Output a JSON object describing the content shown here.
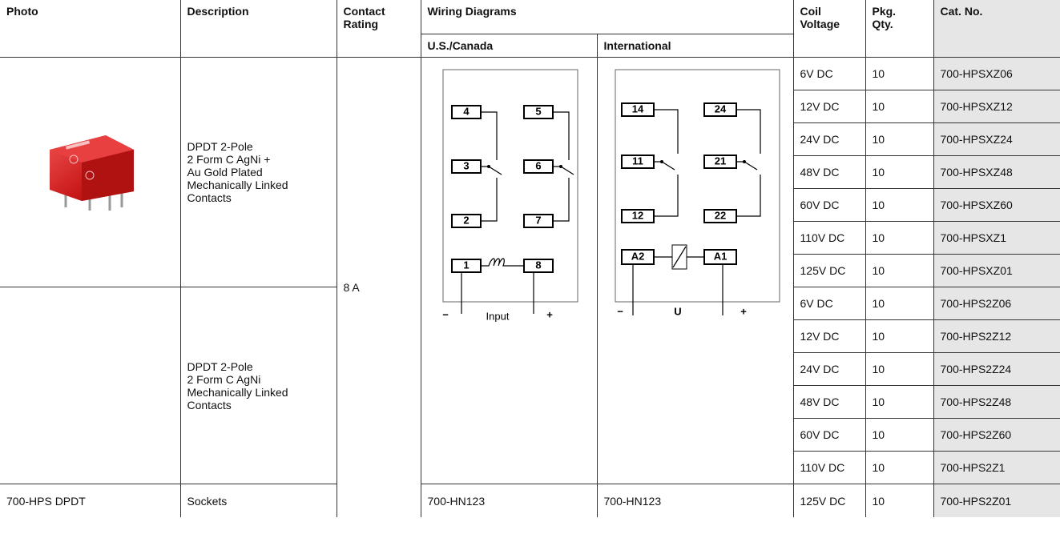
{
  "header": {
    "photo": "Photo",
    "description": "Description",
    "contact_rating": "Contact Rating",
    "wiring_diagrams": "Wiring Diagrams",
    "us_canada": "U.S./Canada",
    "international": "International",
    "coil_voltage": "Coil Voltage",
    "pkg_qty": "Pkg. Qty.",
    "cat_no": "Cat. No."
  },
  "contact_rating": "8 A",
  "groups": [
    {
      "description": [
        "DPDT 2-Pole",
        "2 Form C AgNi +",
        "Au Gold Plated",
        "Mechanically Linked",
        "Contacts"
      ],
      "rows": [
        [
          "6V DC",
          "10",
          "700-HPSXZ06"
        ],
        [
          "12V DC",
          "10",
          "700-HPSXZ12"
        ],
        [
          "24V DC",
          "10",
          "700-HPSXZ24"
        ],
        [
          "48V DC",
          "10",
          "700-HPSXZ48"
        ],
        [
          "60V DC",
          "10",
          "700-HPSXZ60"
        ],
        [
          "110V DC",
          "10",
          "700-HPSXZ1"
        ],
        [
          "125V DC",
          "10",
          "700-HPSXZ01"
        ]
      ]
    },
    {
      "description": [
        "DPDT 2-Pole",
        "2 Form C AgNi",
        "Mechanically Linked",
        "Contacts"
      ],
      "rows": [
        [
          "6V DC",
          "10",
          "700-HPS2Z06"
        ],
        [
          "12V DC",
          "10",
          "700-HPS2Z12"
        ],
        [
          "24V DC",
          "10",
          "700-HPS2Z24"
        ],
        [
          "48V DC",
          "10",
          "700-HPS2Z48"
        ],
        [
          "60V DC",
          "10",
          "700-HPS2Z60"
        ],
        [
          "110V DC",
          "10",
          "700-HPS2Z1"
        ]
      ]
    }
  ],
  "sockets_row": {
    "photo": "700-HPS DPDT",
    "description": "Sockets",
    "us_canada": "700-HN123",
    "international": "700-HN123",
    "coil_voltage": "125V DC",
    "pkg_qty": "10",
    "cat_no": "700-HPS2Z01"
  },
  "diagrams": {
    "us_canada": {
      "terminals": [
        "4",
        "5",
        "3",
        "6",
        "2",
        "7",
        "1",
        "8"
      ],
      "minus": "−",
      "label": "Input",
      "plus": "+"
    },
    "international": {
      "terminals": [
        "14",
        "24",
        "11",
        "21",
        "12",
        "22",
        "A2",
        "A1"
      ],
      "minus": "−",
      "label": "U",
      "plus": "+"
    }
  }
}
